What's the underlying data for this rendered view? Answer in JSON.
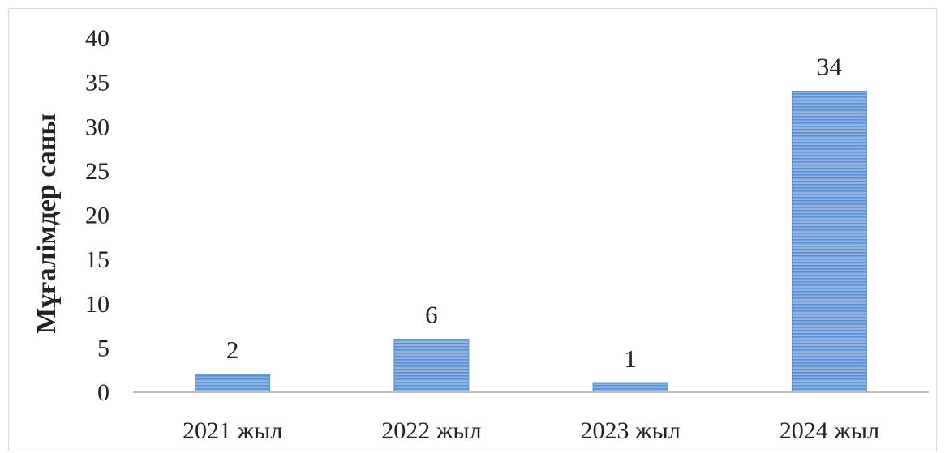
{
  "chart_data": {
    "type": "bar",
    "categories": [
      "2021 жыл",
      "2022 жыл",
      "2023 жыл",
      "2024 жыл"
    ],
    "values": [
      2,
      6,
      1,
      34
    ],
    "data_labels": [
      "2",
      "6",
      "1",
      "34"
    ],
    "title": "",
    "xlabel": "",
    "ylabel": "Мұғалімдер саны",
    "ylim": [
      0,
      40
    ],
    "yticks": [
      0,
      5,
      10,
      15,
      20,
      25,
      30,
      35,
      40
    ],
    "grid": false,
    "legend": "none",
    "bar_fill": "#8db4e2",
    "bar_stripe": "#5b8fcf"
  }
}
